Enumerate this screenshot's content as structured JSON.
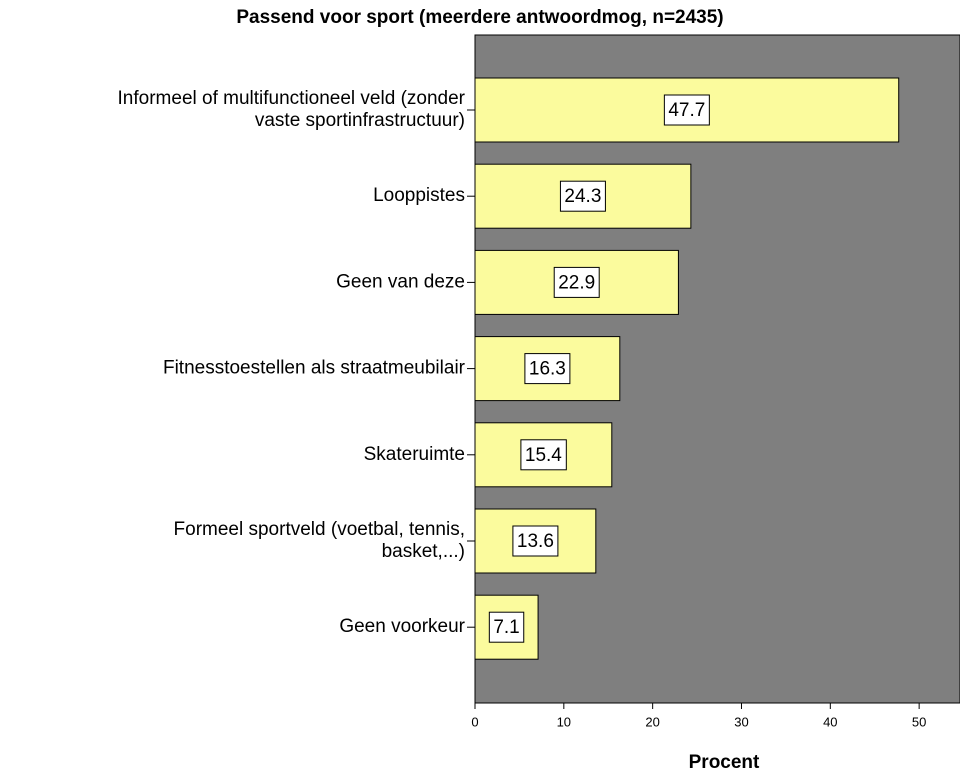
{
  "chart_data": {
    "type": "barh",
    "title": "Passend voor sport (meerdere antwoordmog, n=2435)",
    "categories": [
      "Informeel of multifunctioneel veld (zonder\nvaste sportinfrastructuur)",
      "Looppistes",
      "Geen van deze",
      "Fitnesstoestellen als straatmeubilair",
      "Skateruimte",
      "Formeel sportveld (voetbal, tennis,\nbasket,...)",
      "Geen voorkeur"
    ],
    "values": [
      47.7,
      24.3,
      22.9,
      16.3,
      15.4,
      13.6,
      7.1
    ],
    "color": "#fbfb9d",
    "background": "#7f7f7f",
    "xlabel": "Procent",
    "xlim": [
      0,
      54.6
    ],
    "xticks": [
      0,
      10,
      20,
      30,
      40,
      50
    ],
    "grid": false
  }
}
